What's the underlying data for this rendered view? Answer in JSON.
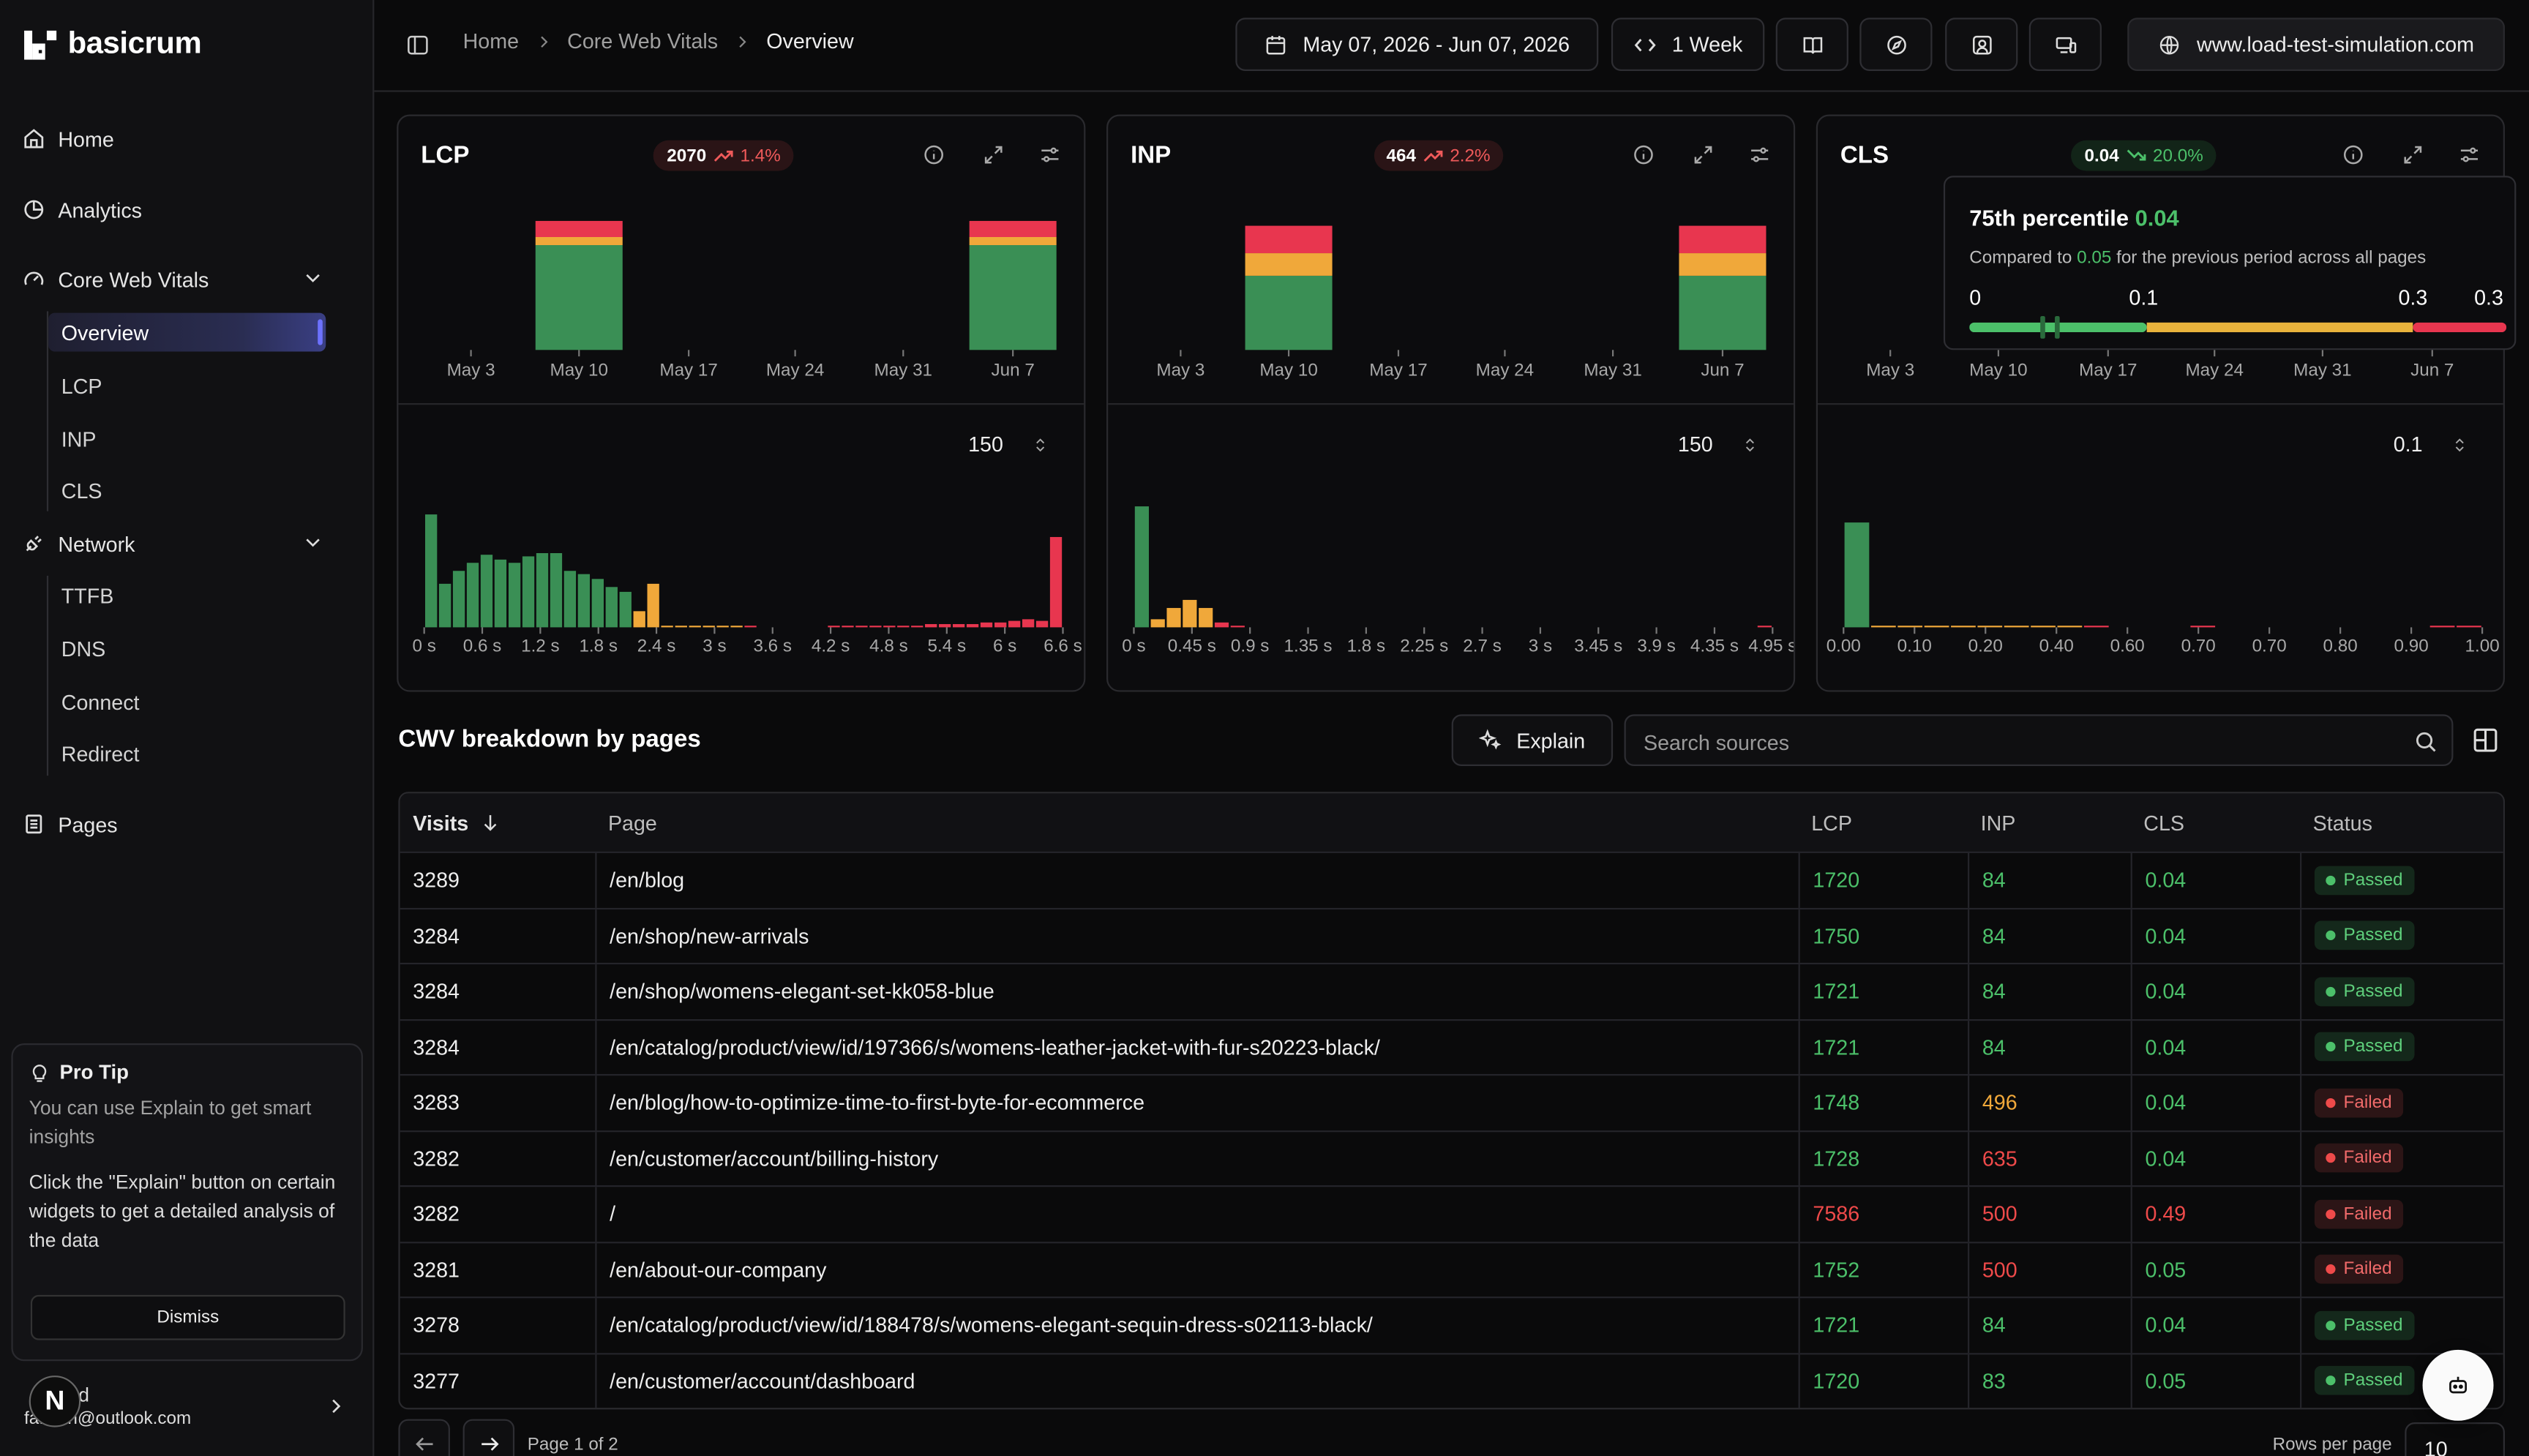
{
  "app": {
    "name": "basicrum"
  },
  "sidebar": {
    "items": {
      "home": "Home",
      "analytics": "Analytics",
      "cwv": "Core Web Vitals",
      "network": "Network",
      "pages": "Pages"
    },
    "cwv_children": [
      "Overview",
      "LCP",
      "INP",
      "CLS"
    ],
    "network_children": [
      "TTFB",
      "DNS",
      "Connect",
      "Redirect"
    ],
    "protip": {
      "title": "Pro Tip",
      "text1": "You can use Explain to get smart insights",
      "text2": "Click the \"Explain\" button on certain widgets to get a detailed analysis of the data",
      "dismiss": "Dismiss"
    },
    "user": {
      "initial": "N",
      "name": "/ ...d",
      "email": "fa...bin@outlook.com"
    }
  },
  "breadcrumb": [
    "Home",
    "Core Web Vitals",
    "Overview"
  ],
  "topbar": {
    "date_range": "May 07, 2026 - Jun 07, 2026",
    "granularity": "1 Week",
    "site": "www.load-test-simulation.com"
  },
  "cards": [
    {
      "title": "LCP",
      "badge_value": "2070",
      "badge_delta": "1.4%",
      "trend": "up",
      "stepper": "150",
      "weeks": [
        "May 3",
        "May 10",
        "May 17",
        "May 24",
        "May 31",
        "Jun 7"
      ],
      "ticks": [
        "0 s",
        "0.6 s",
        "1.2 s",
        "1.8 s",
        "2.4 s",
        "3 s",
        "3.6 s",
        "4.2 s",
        "4.8 s",
        "5.4 s",
        "6 s",
        "6.6 s"
      ]
    },
    {
      "title": "INP",
      "badge_value": "464",
      "badge_delta": "2.2%",
      "trend": "up",
      "stepper": "150",
      "weeks": [
        "May 3",
        "May 10",
        "May 17",
        "May 24",
        "May 31",
        "Jun 7"
      ],
      "ticks": [
        "0 s",
        "0.45 s",
        "0.9 s",
        "1.35 s",
        "1.8 s",
        "2.25 s",
        "2.7 s",
        "3 s",
        "3.45 s",
        "3.9 s",
        "4.35 s",
        "4.95 s"
      ]
    },
    {
      "title": "CLS",
      "badge_value": "0.04",
      "badge_delta": "20.0%",
      "trend": "down",
      "stepper": "0.1",
      "weeks": [
        "May 3",
        "May 10",
        "May 17",
        "May 24",
        "May 31",
        "Jun 7"
      ],
      "ticks": [
        "0.00",
        "0.10",
        "0.20",
        "0.40",
        "0.60",
        "0.70",
        "0.70",
        "0.80",
        "0.90",
        "1.00"
      ]
    }
  ],
  "cls_tooltip": {
    "title": "75th percentile",
    "value": "0.04",
    "compare_prefix": "Compared to",
    "compare_value": "0.05",
    "compare_suffix": "for the previous period across all pages",
    "scale": [
      "0",
      "0.1",
      "0.3",
      "0.3"
    ]
  },
  "chart_data": [
    {
      "type": "bar",
      "title": "LCP",
      "categories": [
        "May 3",
        "May 10",
        "May 17",
        "May 24",
        "May 31",
        "Jun 7"
      ],
      "series": [
        {
          "name": "good",
          "values": [
            0,
            65,
            0,
            0,
            0,
            65
          ]
        },
        {
          "name": "needs-improvement",
          "values": [
            0,
            5,
            0,
            0,
            0,
            5
          ]
        },
        {
          "name": "poor",
          "values": [
            0,
            10,
            0,
            0,
            0,
            10
          ]
        }
      ],
      "colors": {
        "good": "#3a8f55",
        "needs-improvement": "#f0a83a",
        "poor": "#e8364f"
      }
    },
    {
      "type": "bar",
      "title": "LCP distribution",
      "values": [
        70,
        27,
        35,
        40,
        45,
        42,
        40,
        44,
        46,
        46,
        35,
        33,
        30,
        25,
        22,
        10,
        27,
        1,
        1,
        1,
        1,
        1,
        1,
        1,
        0,
        0,
        0,
        0,
        0,
        1,
        1,
        1,
        1,
        1,
        1,
        1,
        2,
        2,
        2,
        2,
        3,
        3,
        4,
        5,
        4,
        56
      ],
      "colors_by_bucket": [
        "good x15",
        "needs-improvement x8",
        "poor x23"
      ]
    },
    {
      "type": "bar",
      "title": "INP",
      "categories": [
        "May 3",
        "May 10",
        "May 17",
        "May 24",
        "May 31",
        "Jun 7"
      ],
      "series": [
        {
          "name": "good",
          "values": [
            0,
            46,
            0,
            0,
            0,
            46
          ]
        },
        {
          "name": "needs-improvement",
          "values": [
            0,
            14,
            0,
            0,
            0,
            14
          ]
        },
        {
          "name": "poor",
          "values": [
            0,
            17,
            0,
            0,
            0,
            17
          ]
        }
      ]
    },
    {
      "type": "bar",
      "title": "INP distribution",
      "values": [
        75,
        5,
        12,
        17,
        12,
        3,
        1,
        0,
        0,
        0,
        0,
        0,
        0,
        0,
        0,
        0,
        0,
        0,
        0,
        0,
        0,
        0,
        0,
        0,
        0,
        0,
        0,
        0,
        0,
        0,
        0,
        0,
        0,
        0,
        0,
        0,
        0,
        0,
        0,
        1
      ]
    },
    {
      "type": "bar",
      "title": "CLS distribution",
      "values": [
        65,
        1,
        1,
        1,
        1,
        1,
        1,
        1,
        1,
        1,
        0,
        0,
        0,
        1,
        0,
        0,
        0,
        0,
        0,
        0,
        0,
        0,
        1,
        1
      ]
    }
  ],
  "table": {
    "title": "CWV breakdown by pages",
    "explain_label": "Explain",
    "search_placeholder": "Search sources",
    "columns": [
      "Visits",
      "Page",
      "LCP",
      "INP",
      "CLS",
      "Status"
    ],
    "rows": [
      {
        "visits": "3289",
        "page": "/en/blog",
        "lcp": "1720",
        "inp": "84",
        "cls": "0.04",
        "status": "Passed"
      },
      {
        "visits": "3284",
        "page": "/en/shop/new-arrivals",
        "lcp": "1750",
        "inp": "84",
        "cls": "0.04",
        "status": "Passed"
      },
      {
        "visits": "3284",
        "page": "/en/shop/womens-elegant-set-kk058-blue",
        "lcp": "1721",
        "inp": "84",
        "cls": "0.04",
        "status": "Passed"
      },
      {
        "visits": "3284",
        "page": "/en/catalog/product/view/id/197366/s/womens-leather-jacket-with-fur-s20223-black/",
        "lcp": "1721",
        "inp": "84",
        "cls": "0.04",
        "status": "Passed"
      },
      {
        "visits": "3283",
        "page": "/en/blog/how-to-optimize-time-to-first-byte-for-ecommerce",
        "lcp": "1748",
        "inp": "496",
        "cls": "0.04",
        "status": "Failed"
      },
      {
        "visits": "3282",
        "page": "/en/customer/account/billing-history",
        "lcp": "1728",
        "inp": "635",
        "cls": "0.04",
        "status": "Failed"
      },
      {
        "visits": "3282",
        "page": "/",
        "lcp": "7586",
        "inp": "500",
        "cls": "0.49",
        "status": "Failed"
      },
      {
        "visits": "3281",
        "page": "/en/about-our-company",
        "lcp": "1752",
        "inp": "500",
        "cls": "0.05",
        "status": "Failed"
      },
      {
        "visits": "3278",
        "page": "/en/catalog/product/view/id/188478/s/womens-elegant-sequin-dress-s02113-black/",
        "lcp": "1721",
        "inp": "84",
        "cls": "0.04",
        "status": "Passed"
      },
      {
        "visits": "3277",
        "page": "/en/customer/account/dashboard",
        "lcp": "1720",
        "inp": "83",
        "cls": "0.05",
        "status": "Passed"
      }
    ],
    "cell_ratings": [
      [
        "good",
        "good",
        "good"
      ],
      [
        "good",
        "good",
        "good"
      ],
      [
        "good",
        "good",
        "good"
      ],
      [
        "good",
        "good",
        "good"
      ],
      [
        "good",
        "warn",
        "good"
      ],
      [
        "good",
        "bad",
        "good"
      ],
      [
        "bad",
        "bad",
        "bad"
      ],
      [
        "good",
        "bad",
        "good"
      ],
      [
        "good",
        "good",
        "good"
      ],
      [
        "good",
        "good",
        "good"
      ]
    ]
  },
  "pagination": {
    "label": "Page 1 of 2",
    "rows_per_page_label": "Rows per page",
    "rows_per_page": "10"
  },
  "colors": {
    "good": "#3a8f55",
    "warn": "#f0a83a",
    "bad": "#e8364f",
    "accent": "#6d72ff"
  }
}
